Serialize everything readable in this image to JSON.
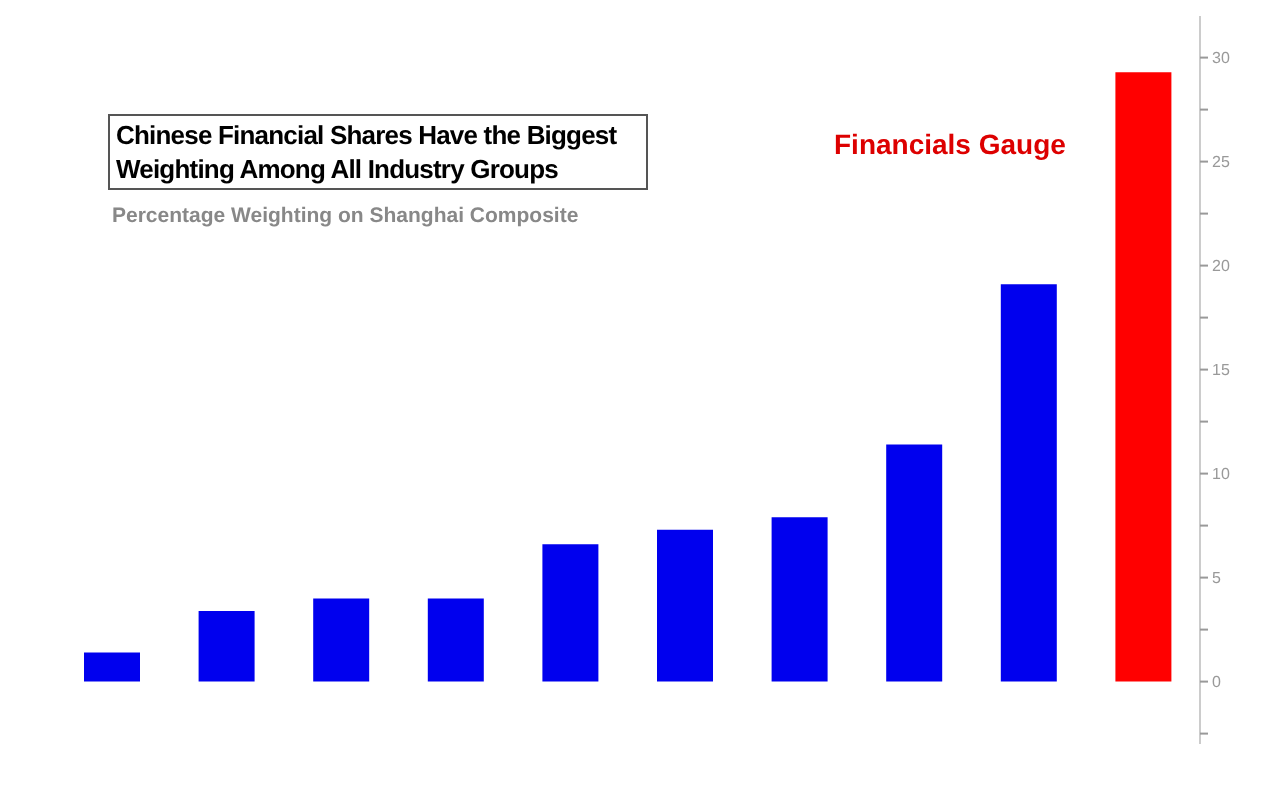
{
  "chart_data": {
    "type": "bar",
    "title": "Chinese Financial Shares Have the Biggest Weighting Among All Industry Groups",
    "subtitle": "Percentage Weighting on Shanghai Composite",
    "annotations": [
      "Financials Gauge"
    ],
    "categories": [
      null,
      null,
      null,
      null,
      null,
      null,
      null,
      null,
      null,
      null
    ],
    "values": [
      1.4,
      3.4,
      4.0,
      4.0,
      6.6,
      7.3,
      7.9,
      11.4,
      19.1,
      29.3
    ],
    "colors": [
      "#0000ee",
      "#0000ee",
      "#0000ee",
      "#0000ee",
      "#0000ee",
      "#0000ee",
      "#0000ee",
      "#0000ee",
      "#0000ee",
      "#ff0000"
    ],
    "ylim": [
      -3,
      32
    ],
    "yticks": [
      {
        "value": -2.5,
        "label": null
      },
      0,
      {
        "value": 2.5,
        "label": null
      },
      5,
      {
        "value": 7.5,
        "label": null
      },
      10,
      {
        "value": 12.5,
        "label": null
      },
      15,
      {
        "value": 17.5,
        "label": null
      },
      20,
      {
        "value": 22.5,
        "label": null
      },
      25,
      {
        "value": 27.5,
        "label": null
      },
      30
    ],
    "tick_labels": "y"
  }
}
